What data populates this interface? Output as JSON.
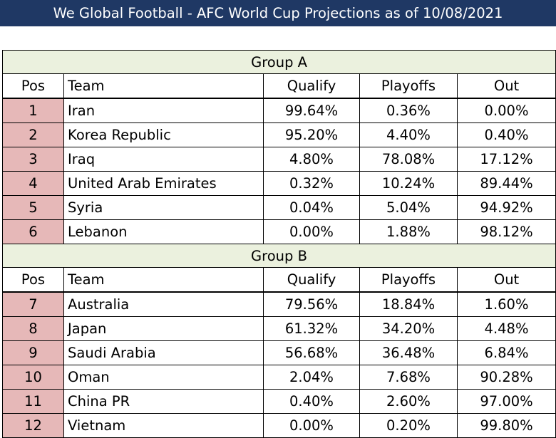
{
  "title": "We Global Football - AFC World Cup Projections as of 10/08/2021",
  "columns": {
    "pos": "Pos",
    "team": "Team",
    "qualify": "Qualify",
    "playoffs": "Playoffs",
    "out": "Out"
  },
  "groups": [
    {
      "name": "Group A",
      "rows": [
        {
          "pos": "1",
          "team": "Iran",
          "qualify": "99.64%",
          "playoffs": "0.36%",
          "out": "0.00%"
        },
        {
          "pos": "2",
          "team": "Korea Republic",
          "qualify": "95.20%",
          "playoffs": "4.40%",
          "out": "0.40%"
        },
        {
          "pos": "3",
          "team": "Iraq",
          "qualify": "4.80%",
          "playoffs": "78.08%",
          "out": "17.12%"
        },
        {
          "pos": "4",
          "team": "United Arab Emirates",
          "qualify": "0.32%",
          "playoffs": "10.24%",
          "out": "89.44%"
        },
        {
          "pos": "5",
          "team": "Syria",
          "qualify": "0.04%",
          "playoffs": "5.04%",
          "out": "94.92%"
        },
        {
          "pos": "6",
          "team": "Lebanon",
          "qualify": "0.00%",
          "playoffs": "1.88%",
          "out": "98.12%"
        }
      ]
    },
    {
      "name": "Group B",
      "rows": [
        {
          "pos": "7",
          "team": "Australia",
          "qualify": "79.56%",
          "playoffs": "18.84%",
          "out": "1.60%"
        },
        {
          "pos": "8",
          "team": "Japan",
          "qualify": "61.32%",
          "playoffs": "34.20%",
          "out": "4.48%"
        },
        {
          "pos": "9",
          "team": "Saudi Arabia",
          "qualify": "56.68%",
          "playoffs": "36.48%",
          "out": "6.84%"
        },
        {
          "pos": "10",
          "team": "Oman",
          "qualify": "2.04%",
          "playoffs": "7.68%",
          "out": "90.28%"
        },
        {
          "pos": "11",
          "team": "China PR",
          "qualify": "0.40%",
          "playoffs": "2.60%",
          "out": "97.00%"
        },
        {
          "pos": "12",
          "team": "Vietnam",
          "qualify": "0.00%",
          "playoffs": "0.20%",
          "out": "99.80%"
        }
      ]
    }
  ],
  "colors": {
    "title_bg": "#1f3864",
    "group_header_bg": "#ebf1de",
    "pos_cell_bg": "#e6b8b8"
  }
}
